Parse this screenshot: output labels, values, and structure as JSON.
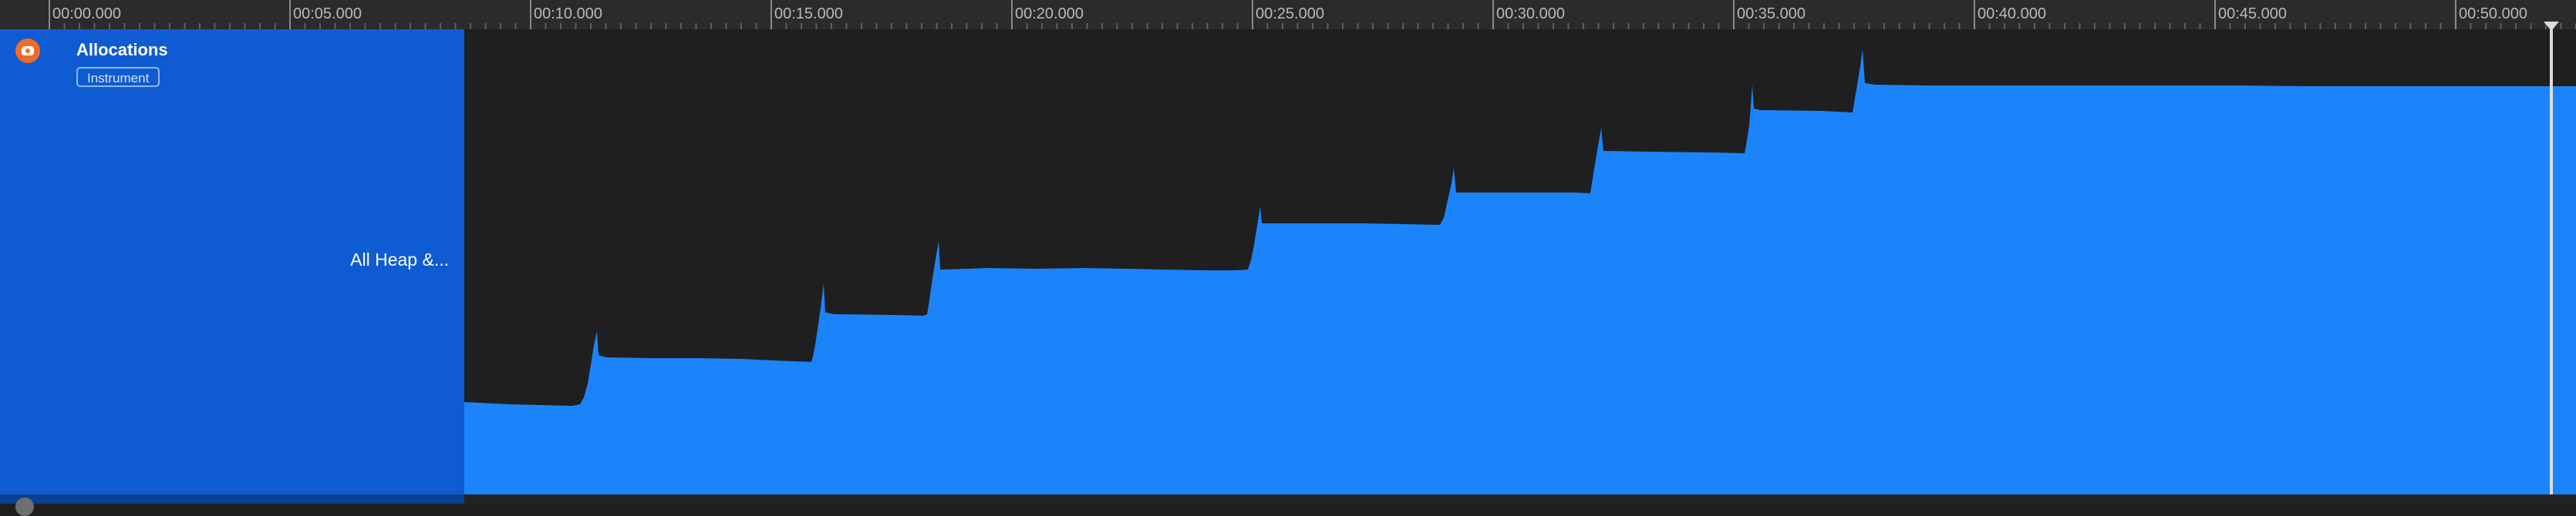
{
  "timeline": {
    "ticks": [
      "00:00.000",
      "00:05.000",
      "00:10.000",
      "00:15.000",
      "00:20.000",
      "00:25.000",
      "00:30.000",
      "00:35.000",
      "00:40.000",
      "00:45.000",
      "00:50.000"
    ]
  },
  "track": {
    "title": "Allocations",
    "badge": "Instrument",
    "label": "All Heap &..."
  },
  "colors": {
    "header_bg": "#0f5bd1",
    "fill": "#1c84fb",
    "record_icon": "#f26b2a"
  },
  "icons": {
    "record_toggle": "record-icon",
    "playhead": "playhead-marker-icon"
  }
}
